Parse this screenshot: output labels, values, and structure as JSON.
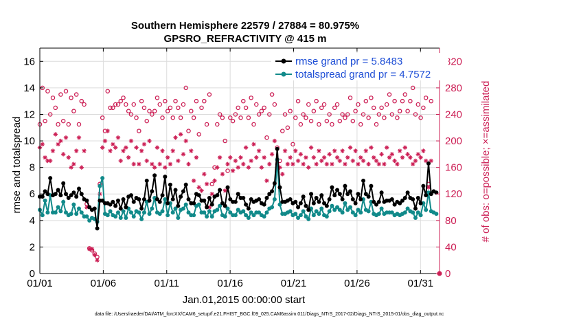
{
  "chart_data": {
    "type": "line",
    "title_line1": "Southern Hemisphere 22579 / 27884 = 80.975%",
    "title_line2": "GPSRO_REFRACTIVITY @ 415 m",
    "xlabel": "Jan.01,2015 00:00:00 start",
    "ylabel": "rmse and totalspread",
    "y2label": "# of obs: o=possible; ×=assimilated",
    "footer": "data file: /Users/raeder/DAI/ATM_forcXX/CAM6_setup/f.e21.FHIST_BGC.f09_025.CAM6assim.011/Diags_NTrS_2017-02/Diags_NTrS_2015-01/obs_diag_output.nc",
    "xlim": [
      1,
      32.5
    ],
    "ylim": [
      0,
      17
    ],
    "y2lim": [
      0,
      340
    ],
    "x_ticks": [
      1,
      6,
      11,
      16,
      21,
      26,
      31
    ],
    "x_tick_labels": [
      "01/01",
      "01/06",
      "01/11",
      "01/16",
      "01/21",
      "01/26",
      "01/31"
    ],
    "y_ticks": [
      0,
      2,
      4,
      6,
      8,
      10,
      12,
      14,
      16
    ],
    "y2_ticks": [
      0,
      40,
      80,
      120,
      160,
      200,
      240,
      280,
      320
    ],
    "legend_position": "top-right",
    "colors": {
      "rmse": "#000000",
      "totalspread": "#118a8a",
      "obs": "#cc1f55",
      "legend_text": "#1f4fd6"
    },
    "series": [
      {
        "name": "rmse grand pr = 5.8483",
        "role": "rmse",
        "values": [
          5.8,
          5.8,
          6.2,
          6.0,
          7.2,
          5.9,
          6.0,
          6.3,
          5.9,
          6.8,
          6.0,
          5.7,
          5.9,
          6.1,
          5.8,
          6.4,
          6.0,
          5.6,
          5.5,
          5.0,
          4.8,
          4.9,
          3.4,
          5.5,
          5.5,
          5.3,
          5.3,
          5.2,
          5.4,
          5.1,
          5.5,
          4.9,
          5.6,
          5.0,
          5.8,
          5.9,
          5.4,
          5.7,
          5.6,
          4.9,
          5.6,
          7.0,
          5.5,
          6.2,
          7.4,
          5.6,
          5.4,
          5.9,
          7.3,
          5.3,
          6.7,
          5.6,
          6.3,
          5.1,
          5.8,
          6.2,
          6.7,
          5.6,
          5.3,
          5.3,
          6.0,
          5.9,
          5.5,
          5.5,
          5.0,
          5.7,
          5.2,
          5.8,
          5.9,
          6.3,
          5.3,
          5.1,
          6.5,
          5.6,
          5.4,
          5.4,
          6.0,
          5.7,
          5.7,
          5.2,
          4.9,
          5.6,
          5.4,
          5.5,
          5.6,
          5.3,
          5.2,
          5.7,
          6.0,
          6.2,
          6.8,
          9.4,
          6.5,
          5.4,
          5.4,
          5.5,
          5.6,
          5.3,
          5.4,
          5.0,
          5.3,
          5.8,
          5.1,
          4.8,
          6.0,
          5.3,
          5.7,
          5.4,
          5.9,
          5.3,
          5.1,
          5.6,
          6.5,
          5.9,
          6.3,
          6.0,
          5.6,
          6.6,
          6.0,
          6.2,
          5.6,
          5.3,
          6.0,
          5.6,
          7.0,
          6.0,
          5.8,
          6.6,
          5.4,
          5.2,
          5.4,
          6.1,
          5.4,
          5.5,
          5.5,
          5.6,
          5.2,
          5.4,
          5.3,
          5.5,
          5.7,
          6.1,
          5.7,
          5.6,
          4.9,
          5.7,
          5.3,
          6.6,
          5.9,
          8.3,
          6.0,
          6.2,
          6.1
        ]
      },
      {
        "name": "totalspread grand pr = 4.7572",
        "role": "totalspread",
        "values": [
          4.8,
          4.4,
          5.5,
          4.6,
          5.9,
          4.6,
          4.6,
          5.0,
          4.7,
          5.4,
          4.6,
          4.4,
          4.5,
          5.2,
          4.5,
          4.9,
          4.6,
          4.3,
          4.3,
          4.0,
          4.2,
          4.1,
          3.9,
          6.6,
          7.2,
          4.5,
          4.4,
          4.7,
          4.4,
          4.3,
          4.6,
          4.2,
          4.7,
          4.2,
          4.9,
          4.6,
          4.3,
          4.7,
          4.6,
          4.1,
          4.6,
          5.4,
          4.5,
          4.9,
          5.7,
          4.6,
          4.5,
          4.7,
          5.6,
          4.4,
          5.3,
          4.6,
          4.9,
          4.2,
          4.8,
          4.9,
          5.2,
          4.6,
          4.4,
          4.4,
          5.1,
          5.2,
          4.6,
          4.6,
          4.3,
          4.7,
          4.3,
          4.7,
          4.8,
          5.1,
          4.4,
          4.3,
          4.9,
          4.6,
          4.4,
          4.4,
          4.8,
          4.6,
          4.7,
          4.4,
          4.2,
          4.6,
          4.4,
          4.6,
          4.6,
          4.4,
          4.3,
          4.6,
          4.9,
          5.0,
          5.6,
          8.6,
          5.2,
          4.5,
          4.5,
          4.6,
          4.7,
          4.4,
          4.5,
          4.2,
          4.4,
          4.7,
          4.3,
          4.1,
          4.9,
          4.4,
          4.7,
          4.5,
          4.9,
          4.4,
          4.3,
          4.7,
          5.1,
          4.8,
          5.0,
          4.8,
          4.6,
          5.3,
          4.8,
          5.0,
          4.6,
          4.4,
          4.8,
          4.6,
          5.6,
          4.8,
          4.7,
          5.4,
          4.5,
          4.4,
          4.5,
          4.9,
          4.5,
          4.6,
          4.6,
          4.6,
          4.4,
          4.5,
          4.4,
          4.5,
          4.6,
          4.9,
          4.7,
          4.6,
          4.2,
          4.6,
          4.4,
          5.3,
          4.8,
          6.1,
          4.7,
          4.6,
          4.5
        ]
      },
      {
        "name": "possible",
        "role": "possible",
        "values": [
          225,
          280,
          230,
          275,
          240,
          265,
          250,
          225,
          270,
          230,
          275,
          225,
          265,
          245,
          270,
          225,
          260,
          255,
          105,
          38,
          35,
          30,
          25,
          135,
          235,
          215,
          275,
          250,
          250,
          255,
          255,
          260,
          265,
          255,
          245,
          240,
          255,
          235,
          215,
          260,
          250,
          230,
          245,
          240,
          245,
          265,
          255,
          235,
          260,
          245,
          250,
          235,
          260,
          250,
          235,
          255,
          280,
          215,
          245,
          235,
          260,
          210,
          250,
          260,
          225,
          270,
          135,
          160,
          225,
          240,
          235,
          200,
          155,
          235,
          230,
          240,
          250,
          235,
          260,
          250,
          235,
          265,
          225,
          255,
          240,
          245,
          250,
          205,
          240,
          270,
          255,
          190,
          170,
          215,
          240,
          220,
          245,
          195,
          235,
          260,
          225,
          240,
          235,
          255,
          230,
          245,
          260,
          225,
          250,
          255,
          230,
          240,
          225,
          250,
          255,
          230,
          240,
          235,
          240,
          265,
          230,
          245,
          255,
          225,
          240,
          260,
          235,
          265,
          250,
          225,
          240,
          250,
          235,
          255,
          270,
          240,
          260,
          235,
          245,
          260,
          270,
          245,
          260,
          280,
          240,
          255,
          235,
          250,
          265,
          135,
          260
        ]
      },
      {
        "name": "assimilated",
        "role": "assimilated",
        "values": [
          190,
          195,
          175,
          170,
          170,
          185,
          210,
          195,
          200,
          180,
          205,
          175,
          160,
          165,
          185,
          205,
          160,
          185,
          100,
          37,
          37,
          28,
          20,
          120,
          190,
          200,
          215,
          185,
          195,
          190,
          205,
          170,
          185,
          190,
          175,
          200,
          165,
          190,
          165,
          185,
          195,
          170,
          200,
          165,
          160,
          190,
          165,
          185,
          160,
          175,
          165,
          185,
          205,
          170,
          210,
          180,
          200,
          165,
          185,
          140,
          175,
          130,
          125,
          150,
          135,
          100,
          120,
          140,
          160,
          175,
          150,
          125,
          165,
          175,
          155,
          170,
          160,
          175,
          165,
          190,
          160,
          170,
          195,
          175,
          185,
          160,
          175,
          140,
          165,
          180,
          200,
          165,
          160,
          150,
          185,
          165,
          175,
          165,
          185,
          170,
          180,
          165,
          175,
          160,
          190,
          175,
          165,
          185,
          170,
          175,
          165,
          180,
          165,
          185,
          175,
          170,
          185,
          165,
          175,
          190,
          170,
          185,
          165,
          175,
          170,
          185,
          165,
          190,
          175,
          170,
          165,
          180,
          165,
          190,
          175,
          180,
          170,
          165,
          185,
          175,
          190,
          180,
          175,
          165,
          170,
          180,
          175,
          185,
          170,
          130,
          170
        ]
      }
    ]
  }
}
